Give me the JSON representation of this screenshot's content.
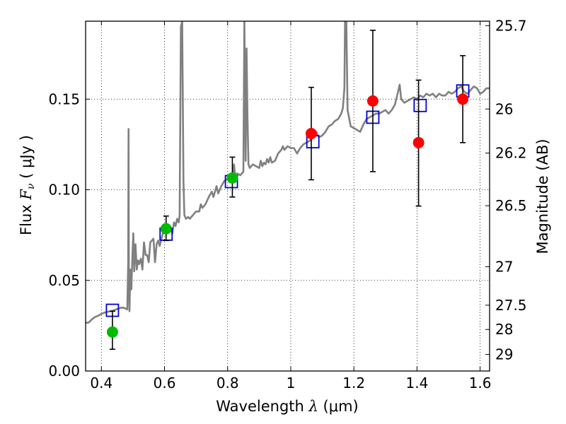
{
  "chart_data": {
    "type": "scatter",
    "xlabel": {
      "prefix": "Wavelength",
      "symbol": "λ",
      "unit": "(μm)"
    },
    "ylabel": {
      "prefix": "Flux",
      "symbol": "F",
      "subscript": "ν",
      "unit": "( μJy )"
    },
    "y2label": "Magnitude (AB)",
    "xlim": [
      0.35,
      1.63
    ],
    "ylim": [
      0.0,
      0.193
    ],
    "grid": true,
    "x_ticks": [
      {
        "value": 0.4,
        "label": "0.4"
      },
      {
        "value": 0.6,
        "label": "0.6"
      },
      {
        "value": 0.8,
        "label": "0.8"
      },
      {
        "value": 1.0,
        "label": "1"
      },
      {
        "value": 1.2,
        "label": "1.2"
      },
      {
        "value": 1.4,
        "label": "1.4"
      },
      {
        "value": 1.6,
        "label": "1.6"
      }
    ],
    "y_ticks": [
      {
        "value": 0.0,
        "label": "0.00"
      },
      {
        "value": 0.05,
        "label": "0.05"
      },
      {
        "value": 0.1,
        "label": "0.10"
      },
      {
        "value": 0.15,
        "label": "0.15"
      }
    ],
    "y2_ticks": [
      {
        "value": 25.7,
        "label": "25.7"
      },
      {
        "value": 26.0,
        "label": "26"
      },
      {
        "value": 26.2,
        "label": "26.2"
      },
      {
        "value": 26.5,
        "label": "26.5"
      },
      {
        "value": 27.0,
        "label": "27"
      },
      {
        "value": 27.5,
        "label": "27.5"
      },
      {
        "value": 28.0,
        "label": "28"
      },
      {
        "value": 29.0,
        "label": "29"
      }
    ],
    "series": [
      {
        "name": "model-spectrum",
        "kind": "line",
        "color": "#808080",
        "points": [
          [
            0.35,
            0.0265
          ],
          [
            0.36,
            0.0268
          ],
          [
            0.37,
            0.0285
          ],
          [
            0.38,
            0.0298
          ],
          [
            0.39,
            0.0305
          ],
          [
            0.4,
            0.0315
          ],
          [
            0.41,
            0.0322
          ],
          [
            0.42,
            0.0327
          ],
          [
            0.43,
            0.033
          ],
          [
            0.44,
            0.0335
          ],
          [
            0.45,
            0.0342
          ],
          [
            0.46,
            0.0348
          ],
          [
            0.47,
            0.035
          ],
          [
            0.475,
            0.0345
          ],
          [
            0.482,
            0.034
          ],
          [
            0.485,
            0.06
          ],
          [
            0.486,
            0.1335
          ],
          [
            0.487,
            0.056
          ],
          [
            0.489,
            0.033
          ],
          [
            0.492,
            0.056
          ],
          [
            0.495,
            0.045
          ],
          [
            0.498,
            0.062
          ],
          [
            0.501,
            0.076
          ],
          [
            0.504,
            0.055
          ],
          [
            0.508,
            0.07
          ],
          [
            0.512,
            0.056
          ],
          [
            0.516,
            0.061
          ],
          [
            0.52,
            0.059
          ],
          [
            0.525,
            0.062
          ],
          [
            0.53,
            0.056
          ],
          [
            0.535,
            0.071
          ],
          [
            0.54,
            0.064
          ],
          [
            0.545,
            0.064
          ],
          [
            0.55,
            0.06
          ],
          [
            0.555,
            0.071
          ],
          [
            0.56,
            0.072
          ],
          [
            0.565,
            0.073
          ],
          [
            0.57,
            0.06
          ],
          [
            0.575,
            0.07
          ],
          [
            0.58,
            0.072
          ],
          [
            0.585,
            0.069
          ],
          [
            0.59,
            0.073
          ],
          [
            0.595,
            0.076
          ],
          [
            0.6,
            0.077
          ],
          [
            0.61,
            0.0775
          ],
          [
            0.62,
            0.078
          ],
          [
            0.625,
            0.076
          ],
          [
            0.63,
            0.082
          ],
          [
            0.635,
            0.08
          ],
          [
            0.64,
            0.084
          ],
          [
            0.645,
            0.082
          ],
          [
            0.648,
            0.086
          ],
          [
            0.652,
            0.19
          ],
          [
            0.656,
            0.193
          ],
          [
            0.66,
            0.105
          ],
          [
            0.663,
            0.086
          ],
          [
            0.668,
            0.084
          ],
          [
            0.675,
            0.085
          ],
          [
            0.68,
            0.084
          ],
          [
            0.69,
            0.086
          ],
          [
            0.7,
            0.088
          ],
          [
            0.71,
            0.088
          ],
          [
            0.715,
            0.092
          ],
          [
            0.72,
            0.09
          ],
          [
            0.73,
            0.092
          ],
          [
            0.74,
            0.096
          ],
          [
            0.75,
            0.099
          ],
          [
            0.755,
            0.096
          ],
          [
            0.76,
            0.099
          ],
          [
            0.765,
            0.102
          ],
          [
            0.77,
            0.098
          ],
          [
            0.78,
            0.102
          ],
          [
            0.79,
            0.105
          ],
          [
            0.8,
            0.106
          ],
          [
            0.81,
            0.105
          ],
          [
            0.815,
            0.108
          ],
          [
            0.82,
            0.114
          ],
          [
            0.825,
            0.106
          ],
          [
            0.83,
            0.109
          ],
          [
            0.84,
            0.108
          ],
          [
            0.85,
            0.11
          ],
          [
            0.853,
            0.193
          ],
          [
            0.857,
            0.116
          ],
          [
            0.86,
            0.178
          ],
          [
            0.863,
            0.14
          ],
          [
            0.866,
            0.114
          ],
          [
            0.87,
            0.112
          ],
          [
            0.88,
            0.114
          ],
          [
            0.89,
            0.113
          ],
          [
            0.9,
            0.112
          ],
          [
            0.905,
            0.116
          ],
          [
            0.91,
            0.113
          ],
          [
            0.915,
            0.115
          ],
          [
            0.92,
            0.114
          ],
          [
            0.925,
            0.117
          ],
          [
            0.93,
            0.115
          ],
          [
            0.935,
            0.118
          ],
          [
            0.94,
            0.115
          ],
          [
            0.95,
            0.116
          ],
          [
            0.96,
            0.12
          ],
          [
            0.97,
            0.122
          ],
          [
            0.975,
            0.124
          ],
          [
            0.98,
            0.122
          ],
          [
            0.99,
            0.124
          ],
          [
            1.0,
            0.123
          ],
          [
            1.01,
            0.123
          ],
          [
            1.02,
            0.12
          ],
          [
            1.03,
            0.123
          ],
          [
            1.04,
            0.125
          ],
          [
            1.05,
            0.126
          ],
          [
            1.06,
            0.127
          ],
          [
            1.07,
            0.129
          ],
          [
            1.08,
            0.132
          ],
          [
            1.09,
            0.129
          ],
          [
            1.1,
            0.13
          ],
          [
            1.11,
            0.132
          ],
          [
            1.12,
            0.135
          ],
          [
            1.13,
            0.136
          ],
          [
            1.14,
            0.138
          ],
          [
            1.15,
            0.139
          ],
          [
            1.16,
            0.142
          ],
          [
            1.165,
            0.145
          ],
          [
            1.17,
            0.156
          ],
          [
            1.172,
            0.193
          ],
          [
            1.176,
            0.193
          ],
          [
            1.18,
            0.144
          ],
          [
            1.19,
            0.135
          ],
          [
            1.2,
            0.134
          ],
          [
            1.21,
            0.133
          ],
          [
            1.22,
            0.132
          ],
          [
            1.23,
            0.136
          ],
          [
            1.24,
            0.139
          ],
          [
            1.25,
            0.14
          ],
          [
            1.26,
            0.141
          ],
          [
            1.27,
            0.142
          ],
          [
            1.28,
            0.142
          ],
          [
            1.29,
            0.143
          ],
          [
            1.3,
            0.144
          ],
          [
            1.31,
            0.142
          ],
          [
            1.32,
            0.144
          ],
          [
            1.33,
            0.147
          ],
          [
            1.34,
            0.154
          ],
          [
            1.345,
            0.158
          ],
          [
            1.35,
            0.15
          ],
          [
            1.36,
            0.148
          ],
          [
            1.37,
            0.149
          ],
          [
            1.38,
            0.15
          ],
          [
            1.39,
            0.151
          ],
          [
            1.4,
            0.15
          ],
          [
            1.41,
            0.152
          ],
          [
            1.42,
            0.151
          ],
          [
            1.43,
            0.153
          ],
          [
            1.44,
            0.152
          ],
          [
            1.45,
            0.153
          ],
          [
            1.46,
            0.151
          ],
          [
            1.47,
            0.153
          ],
          [
            1.48,
            0.152
          ],
          [
            1.49,
            0.152
          ],
          [
            1.5,
            0.154
          ],
          [
            1.51,
            0.153
          ],
          [
            1.52,
            0.154
          ],
          [
            1.53,
            0.156
          ],
          [
            1.54,
            0.157
          ],
          [
            1.55,
            0.154
          ],
          [
            1.56,
            0.153
          ],
          [
            1.57,
            0.155
          ],
          [
            1.58,
            0.157
          ],
          [
            1.59,
            0.156
          ],
          [
            1.6,
            0.153
          ],
          [
            1.61,
            0.154
          ],
          [
            1.62,
            0.156
          ],
          [
            1.63,
            0.156
          ]
        ]
      },
      {
        "name": "synthetic-photometry",
        "kind": "open-square",
        "color": "#0000cc",
        "points": [
          [
            0.435,
            0.0335
          ],
          [
            0.605,
            0.0755
          ],
          [
            0.812,
            0.1045
          ],
          [
            1.07,
            0.1265
          ],
          [
            1.26,
            0.14
          ],
          [
            1.41,
            0.1465
          ],
          [
            1.545,
            0.1545
          ]
        ]
      },
      {
        "name": "observed-optical",
        "kind": "filled-circle",
        "color": "#00bb00",
        "points": [
          {
            "x": 0.435,
            "y": 0.0215,
            "yerr_low": 0.0095,
            "yerr_high": 0.0115
          },
          {
            "x": 0.605,
            "y": 0.0785,
            "yerr_low": 0.0065,
            "yerr_high": 0.007
          },
          {
            "x": 0.815,
            "y": 0.1065,
            "yerr_low": 0.0105,
            "yerr_high": 0.0115
          }
        ]
      },
      {
        "name": "observed-infrared",
        "kind": "filled-circle",
        "color": "#ff0000",
        "points": [
          {
            "x": 1.065,
            "y": 0.131,
            "yerr_low": 0.0255,
            "yerr_high": 0.0255
          },
          {
            "x": 1.26,
            "y": 0.149,
            "yerr_low": 0.039,
            "yerr_high": 0.039
          },
          {
            "x": 1.405,
            "y": 0.126,
            "yerr_low": 0.035,
            "yerr_high": 0.0345
          },
          {
            "x": 1.545,
            "y": 0.15,
            "yerr_low": 0.024,
            "yerr_high": 0.024
          }
        ]
      }
    ]
  }
}
